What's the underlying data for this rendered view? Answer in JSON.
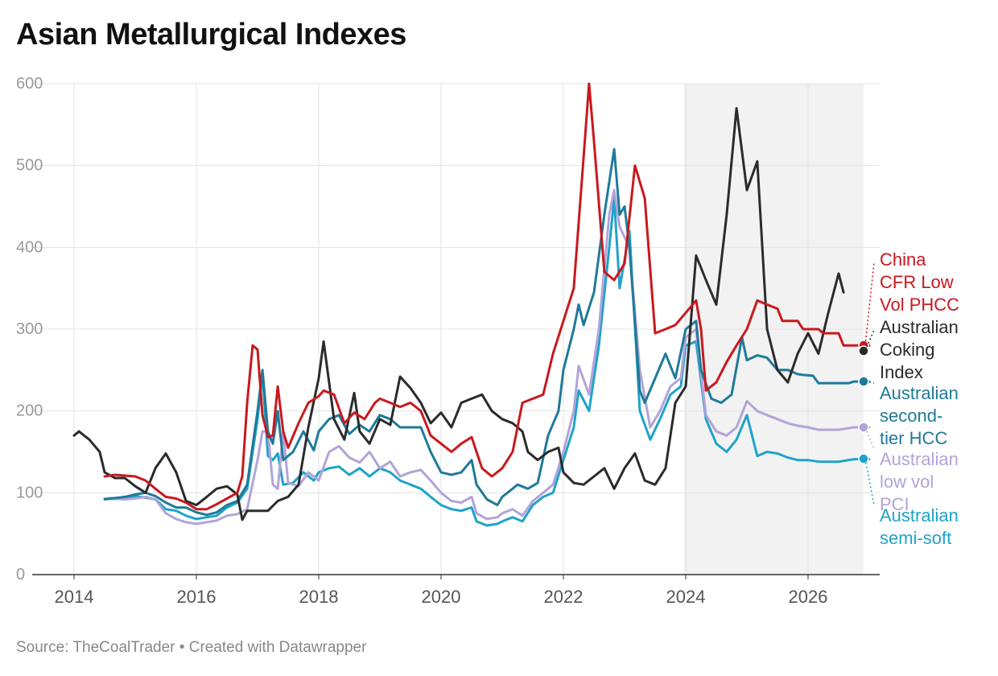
{
  "title": "Asian Metallurgical Indexes",
  "footer": {
    "source": "Source: TheCoalTrader",
    "separator": " • ",
    "credit": "Created with Datawrapper"
  },
  "chart_data": {
    "type": "line",
    "title": "Asian Metallurgical Indexes",
    "xlabel": "",
    "ylabel": "",
    "xlim": [
      2014.0,
      2027.0
    ],
    "ylim": [
      0,
      600
    ],
    "x_ticks": [
      "2014",
      "2016",
      "2018",
      "2020",
      "2022",
      "2024",
      "2026"
    ],
    "y_ticks": [
      "0",
      "100",
      "200",
      "300",
      "400",
      "500",
      "600"
    ],
    "grid": true,
    "forecast_shading": {
      "from": 2024.0,
      "to": 2027.0
    },
    "legend": "direct labels at line ends, right",
    "series": [
      {
        "name": "China CFR Low Vol PHCC",
        "label_lines": [
          "China",
          "CFR Low",
          "Vol PHCC"
        ],
        "color": "#c8191e",
        "points": [
          [
            2014.5,
            120
          ],
          [
            2014.67,
            122
          ],
          [
            2014.83,
            121
          ],
          [
            2015.0,
            120
          ],
          [
            2015.17,
            115
          ],
          [
            2015.33,
            105
          ],
          [
            2015.5,
            95
          ],
          [
            2015.67,
            93
          ],
          [
            2015.83,
            88
          ],
          [
            2016.0,
            80
          ],
          [
            2016.17,
            80
          ],
          [
            2016.33,
            86
          ],
          [
            2016.5,
            93
          ],
          [
            2016.67,
            100
          ],
          [
            2016.75,
            120
          ],
          [
            2016.83,
            210
          ],
          [
            2016.92,
            280
          ],
          [
            2017.0,
            275
          ],
          [
            2017.08,
            195
          ],
          [
            2017.17,
            168
          ],
          [
            2017.25,
            170
          ],
          [
            2017.33,
            230
          ],
          [
            2017.42,
            175
          ],
          [
            2017.5,
            155
          ],
          [
            2017.67,
            185
          ],
          [
            2017.83,
            210
          ],
          [
            2018.0,
            218
          ],
          [
            2018.08,
            225
          ],
          [
            2018.25,
            220
          ],
          [
            2018.42,
            185
          ],
          [
            2018.58,
            198
          ],
          [
            2018.75,
            190
          ],
          [
            2018.92,
            210
          ],
          [
            2019.0,
            215
          ],
          [
            2019.17,
            210
          ],
          [
            2019.33,
            205
          ],
          [
            2019.5,
            210
          ],
          [
            2019.67,
            200
          ],
          [
            2019.83,
            170
          ],
          [
            2020.0,
            160
          ],
          [
            2020.17,
            150
          ],
          [
            2020.33,
            160
          ],
          [
            2020.5,
            168
          ],
          [
            2020.58,
            150
          ],
          [
            2020.67,
            130
          ],
          [
            2020.83,
            120
          ],
          [
            2021.0,
            130
          ],
          [
            2021.17,
            150
          ],
          [
            2021.33,
            210
          ],
          [
            2021.5,
            215
          ],
          [
            2021.67,
            220
          ],
          [
            2021.83,
            270
          ],
          [
            2022.0,
            310
          ],
          [
            2022.17,
            350
          ],
          [
            2022.33,
            510
          ],
          [
            2022.42,
            600
          ],
          [
            2022.5,
            530
          ],
          [
            2022.67,
            370
          ],
          [
            2022.83,
            360
          ],
          [
            2023.0,
            380
          ],
          [
            2023.17,
            500
          ],
          [
            2023.33,
            460
          ],
          [
            2023.5,
            295
          ],
          [
            2023.67,
            300
          ],
          [
            2023.83,
            305
          ],
          [
            2024.0,
            320
          ],
          [
            2024.17,
            335
          ],
          [
            2024.25,
            300
          ],
          [
            2024.33,
            225
          ],
          [
            2024.5,
            235
          ],
          [
            2024.67,
            260
          ],
          [
            2024.83,
            280
          ],
          [
            2025.0,
            300
          ],
          [
            2025.17,
            335
          ],
          [
            2025.33,
            330
          ],
          [
            2025.5,
            325
          ],
          [
            2025.58,
            310
          ],
          [
            2025.83,
            310
          ],
          [
            2025.92,
            300
          ],
          [
            2026.17,
            300
          ],
          [
            2026.25,
            295
          ],
          [
            2026.5,
            295
          ],
          [
            2026.58,
            280
          ],
          [
            2027.0,
            280
          ]
        ]
      },
      {
        "name": "Australian Coking Index",
        "label_lines": [
          "Australian",
          "Coking",
          "Index"
        ],
        "color": "#2b2b2b",
        "points": [
          [
            2014.0,
            170
          ],
          [
            2014.08,
            175
          ],
          [
            2014.25,
            165
          ],
          [
            2014.42,
            150
          ],
          [
            2014.5,
            125
          ],
          [
            2014.67,
            118
          ],
          [
            2014.83,
            118
          ],
          [
            2015.0,
            108
          ],
          [
            2015.17,
            100
          ],
          [
            2015.33,
            130
          ],
          [
            2015.5,
            148
          ],
          [
            2015.67,
            125
          ],
          [
            2015.83,
            90
          ],
          [
            2016.0,
            85
          ],
          [
            2016.17,
            95
          ],
          [
            2016.33,
            105
          ],
          [
            2016.5,
            108
          ],
          [
            2016.67,
            98
          ],
          [
            2016.75,
            67
          ],
          [
            2016.83,
            78
          ],
          [
            2017.0,
            78
          ],
          [
            2017.17,
            78
          ],
          [
            2017.33,
            90
          ],
          [
            2017.5,
            95
          ],
          [
            2017.67,
            110
          ],
          [
            2017.83,
            180
          ],
          [
            2018.0,
            240
          ],
          [
            2018.08,
            285
          ],
          [
            2018.25,
            190
          ],
          [
            2018.42,
            165
          ],
          [
            2018.58,
            222
          ],
          [
            2018.67,
            175
          ],
          [
            2018.83,
            160
          ],
          [
            2019.0,
            190
          ],
          [
            2019.17,
            183
          ],
          [
            2019.33,
            242
          ],
          [
            2019.5,
            228
          ],
          [
            2019.67,
            210
          ],
          [
            2019.83,
            185
          ],
          [
            2020.0,
            198
          ],
          [
            2020.17,
            180
          ],
          [
            2020.33,
            210
          ],
          [
            2020.5,
            215
          ],
          [
            2020.67,
            220
          ],
          [
            2020.83,
            200
          ],
          [
            2021.0,
            190
          ],
          [
            2021.17,
            185
          ],
          [
            2021.33,
            175
          ],
          [
            2021.42,
            150
          ],
          [
            2021.58,
            140
          ],
          [
            2021.75,
            150
          ],
          [
            2021.92,
            155
          ],
          [
            2022.0,
            125
          ],
          [
            2022.17,
            112
          ],
          [
            2022.33,
            110
          ],
          [
            2022.5,
            120
          ],
          [
            2022.67,
            130
          ],
          [
            2022.83,
            105
          ],
          [
            2023.0,
            130
          ],
          [
            2023.17,
            148
          ],
          [
            2023.33,
            115
          ],
          [
            2023.5,
            110
          ],
          [
            2023.67,
            130
          ],
          [
            2023.83,
            210
          ],
          [
            2024.0,
            230
          ],
          [
            2024.17,
            390
          ],
          [
            2024.33,
            360
          ],
          [
            2024.5,
            330
          ],
          [
            2024.67,
            440
          ],
          [
            2024.83,
            570
          ],
          [
            2025.0,
            470
          ],
          [
            2025.17,
            505
          ],
          [
            2025.33,
            300
          ],
          [
            2025.5,
            250
          ],
          [
            2025.67,
            235
          ],
          [
            2025.83,
            270
          ],
          [
            2026.0,
            295
          ],
          [
            2026.17,
            270
          ],
          [
            2026.33,
            320
          ],
          [
            2026.5,
            368
          ],
          [
            2026.58,
            345
          ]
        ]
      },
      {
        "name": "Australian second-tier HCC",
        "label_lines": [
          "Australian",
          "second-",
          "tier HCC"
        ],
        "color": "#1f7a99",
        "points": []
      },
      {
        "name": "Australian low vol PCI",
        "label_lines": [
          "Australian",
          "low vol",
          "PCI"
        ],
        "color": "#b3a3d9",
        "points": []
      },
      {
        "name": "Australian semi-soft",
        "label_lines": [
          "Australian",
          "semi-soft"
        ],
        "color": "#1ea3c9",
        "points": []
      }
    ]
  }
}
